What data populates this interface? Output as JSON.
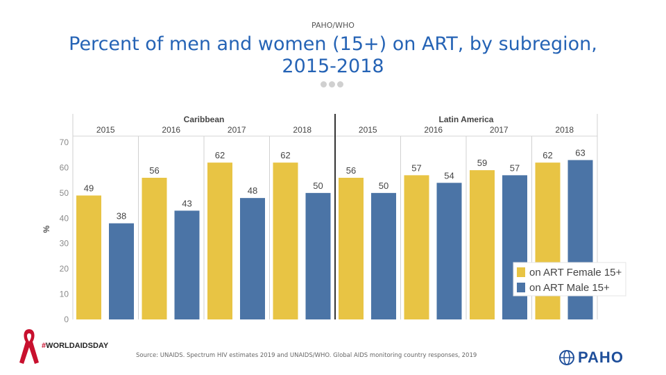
{
  "header": {
    "org": "PAHO/WHO",
    "title_line1": "Percent of men and women (15+) on ART, by subregion,",
    "title_line2": "2015-2018"
  },
  "footer": {
    "source": "Source: UNAIDS. Spectrum HIV estimates 2019 and UNAIDS/WHO. Global AIDS monitoring country responses, 2019",
    "campaign_hash": "#",
    "campaign_text": "WORLDAIDSDAY",
    "org_logo_text": "PAHO"
  },
  "colors": {
    "female": "#e8c444",
    "male": "#4b74a6",
    "title": "#2563b5"
  },
  "chart_data": {
    "type": "bar",
    "ylabel": "%",
    "ylim": [
      0,
      70
    ],
    "yticks": [
      0,
      10,
      20,
      30,
      40,
      50,
      60,
      70
    ],
    "regions": [
      "Caribbean",
      "Latin America"
    ],
    "years": [
      "2015",
      "2016",
      "2017",
      "2018"
    ],
    "categories": [
      "Caribbean 2015",
      "Caribbean 2016",
      "Caribbean 2017",
      "Caribbean 2018",
      "Latin America 2015",
      "Latin America 2016",
      "Latin America 2017",
      "Latin America 2018"
    ],
    "series": [
      {
        "name": "on ART Female 15+",
        "values": [
          49,
          56,
          62,
          62,
          56,
          57,
          59,
          62
        ]
      },
      {
        "name": "on ART Male 15+",
        "values": [
          38,
          43,
          48,
          50,
          50,
          54,
          57,
          63
        ]
      }
    ],
    "legend": "bottom-right"
  }
}
